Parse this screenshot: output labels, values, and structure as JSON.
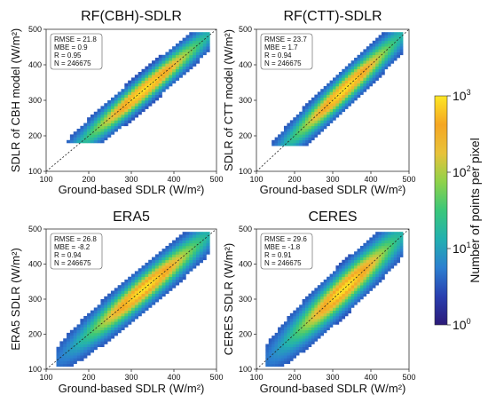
{
  "figure": {
    "colorbar": {
      "label": "Number of points per pixel",
      "scale": "log",
      "range": [
        1,
        1000
      ],
      "ticks": [
        {
          "base": "10",
          "exp": "0"
        },
        {
          "base": "10",
          "exp": "1"
        },
        {
          "base": "10",
          "exp": "2"
        },
        {
          "base": "10",
          "exp": "3"
        }
      ],
      "colormap": [
        "#2b1a78",
        "#2a3fb0",
        "#2c7fd0",
        "#22b0b0",
        "#3ac77a",
        "#8fd24a",
        "#e8c23a",
        "#f5a623",
        "#fde725"
      ]
    }
  },
  "chart_data": [
    {
      "type": "heatmap",
      "title": "RF(CBH)-SDLR",
      "xlabel": "Ground-based SDLR (W/m²)",
      "ylabel": "SDLR of CBH model (W/m²)",
      "xlim": [
        100,
        500
      ],
      "ylim": [
        100,
        500
      ],
      "xticks": [
        "100",
        "200",
        "300",
        "400",
        "500"
      ],
      "yticks": [
        "100",
        "200",
        "300",
        "400",
        "500"
      ],
      "one_to_one_line": true,
      "stats": [
        "RMSE = 21.8",
        "MBE = 0.9",
        "R = 0.95",
        "N = 246675"
      ],
      "y_lower_bound": 180,
      "spread": 22
    },
    {
      "type": "heatmap",
      "title": "RF(CTT)-SDLR",
      "xlabel": "Ground-based SDLR (W/m²)",
      "ylabel": "SDLR of CTT model (W/m²)",
      "xlim": [
        100,
        500
      ],
      "ylim": [
        100,
        500
      ],
      "xticks": [
        "100",
        "200",
        "300",
        "400",
        "500"
      ],
      "yticks": [
        "100",
        "200",
        "300",
        "400",
        "500"
      ],
      "one_to_one_line": true,
      "stats": [
        "RMSE = 23.7",
        "MBE = 1.7",
        "R = 0.94",
        "N = 246675"
      ],
      "y_lower_bound": 175,
      "spread": 24
    },
    {
      "type": "heatmap",
      "title": "ERA5",
      "xlabel": "Ground-based SDLR (W/m²)",
      "ylabel": "ERA5 SDLR (W/m²)",
      "xlim": [
        100,
        500
      ],
      "ylim": [
        100,
        500
      ],
      "xticks": [
        "100",
        "200",
        "300",
        "400",
        "500"
      ],
      "yticks": [
        "100",
        "200",
        "300",
        "400",
        "500"
      ],
      "one_to_one_line": true,
      "stats": [
        "RMSE = 26.8",
        "MBE = -8.2",
        "R = 0.94",
        "N = 246675"
      ],
      "y_lower_bound": 110,
      "spread": 27
    },
    {
      "type": "heatmap",
      "title": "CERES",
      "xlabel": "Ground-based SDLR (W/m²)",
      "ylabel": "CERES SDLR (W/m²)",
      "xlim": [
        100,
        500
      ],
      "ylim": [
        100,
        500
      ],
      "xticks": [
        "100",
        "200",
        "300",
        "400",
        "500"
      ],
      "yticks": [
        "100",
        "200",
        "300",
        "400",
        "500"
      ],
      "one_to_one_line": true,
      "stats": [
        "RMSE = 29.6",
        "MBE = -1.8",
        "R = 0.91",
        "N = 246675"
      ],
      "y_lower_bound": 110,
      "spread": 31
    }
  ]
}
